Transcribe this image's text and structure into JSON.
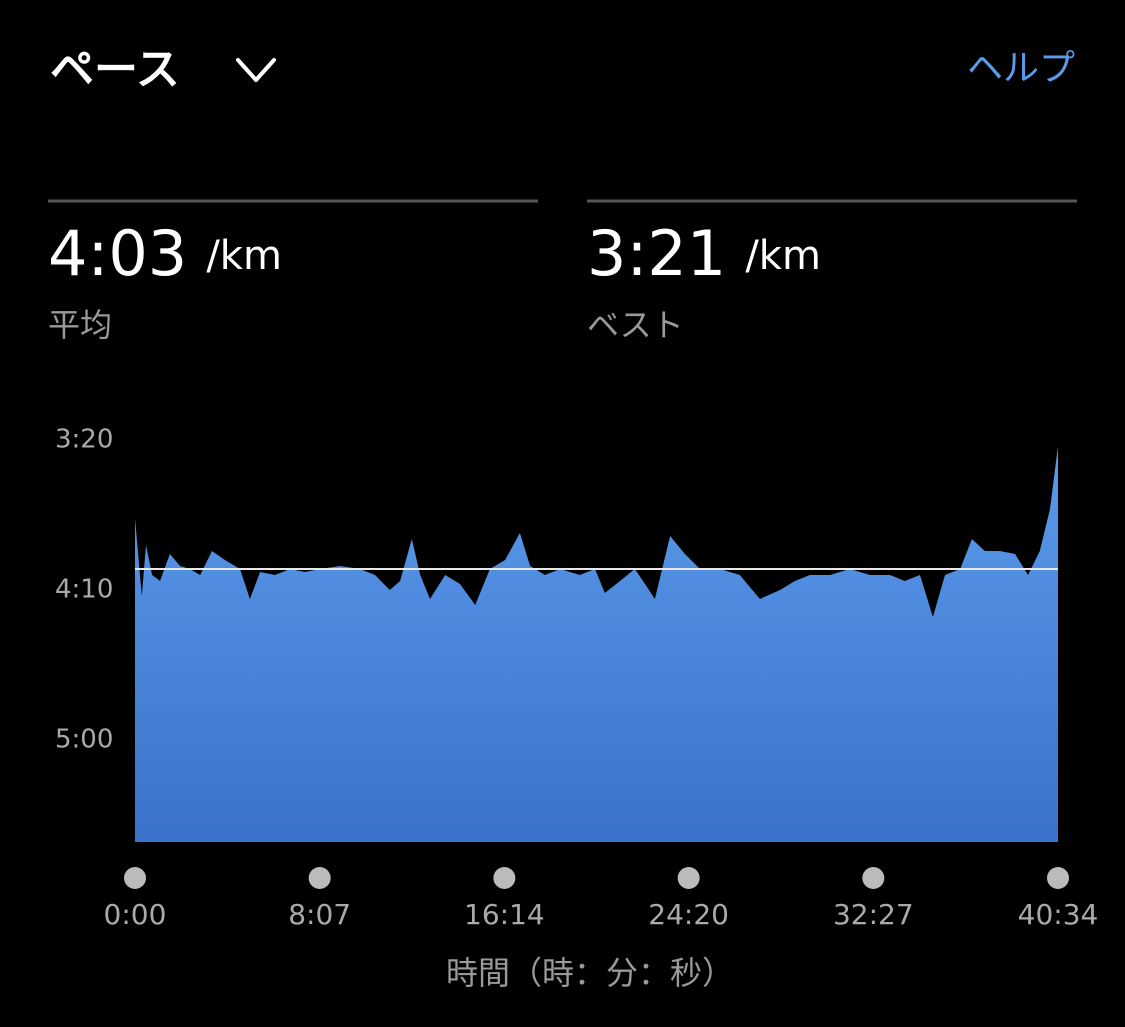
{
  "header": {
    "title": "ペース",
    "help": "ヘルプ"
  },
  "stats": [
    {
      "value": "4:03",
      "unit": "/km",
      "label": "平均"
    },
    {
      "value": "3:21",
      "unit": "/km",
      "label": "ベスト"
    }
  ],
  "chart_data": {
    "type": "area",
    "x_label": "時間（時：分：秒）",
    "color": "#5b9bea",
    "color_bottom": "#3a72cc",
    "average": 243,
    "x": [
      0,
      18,
      29,
      45,
      66,
      92,
      119,
      145,
      172,
      203,
      237,
      277,
      303,
      330,
      369,
      409,
      448,
      488,
      541,
      593,
      633,
      672,
      699,
      730,
      752,
      778,
      818,
      857,
      897,
      936,
      976,
      1015,
      1042,
      1081,
      1121,
      1173,
      1213,
      1239,
      1279,
      1318,
      1345,
      1371,
      1411,
      1450,
      1490,
      1543,
      1595,
      1648,
      1701,
      1740,
      1780,
      1833,
      1885,
      1938,
      1991,
      2030,
      2070,
      2104,
      2136,
      2176,
      2207,
      2241,
      2281,
      2321,
      2355,
      2386,
      2413,
      2434
    ],
    "values": [
      226,
      252,
      235,
      245,
      247,
      238,
      242,
      243,
      245,
      237,
      240,
      243,
      253,
      244,
      245,
      243,
      244,
      243,
      242,
      243,
      245,
      250,
      247,
      233,
      245,
      253,
      245,
      248,
      255,
      243,
      240,
      231,
      242,
      245,
      243,
      245,
      243,
      251,
      247,
      243,
      248,
      253,
      232,
      238,
      243,
      243,
      245,
      253,
      250,
      247,
      245,
      245,
      243,
      245,
      245,
      247,
      245,
      259,
      245,
      243,
      233,
      237,
      237,
      238,
      245,
      237,
      223,
      202
    ],
    "xlim": [
      0,
      2434
    ],
    "ylim": [
      334,
      200
    ],
    "xticks": [
      {
        "value": 0,
        "label": "0:00"
      },
      {
        "value": 487,
        "label": "8:07"
      },
      {
        "value": 974,
        "label": "16:14"
      },
      {
        "value": 1460,
        "label": "24:20"
      },
      {
        "value": 1947,
        "label": "32:27"
      },
      {
        "value": 2434,
        "label": "40:34"
      }
    ],
    "yticks": [
      {
        "value": 200,
        "label": "3:20"
      },
      {
        "value": 250,
        "label": "4:10"
      },
      {
        "value": 300,
        "label": "5:00"
      }
    ]
  }
}
